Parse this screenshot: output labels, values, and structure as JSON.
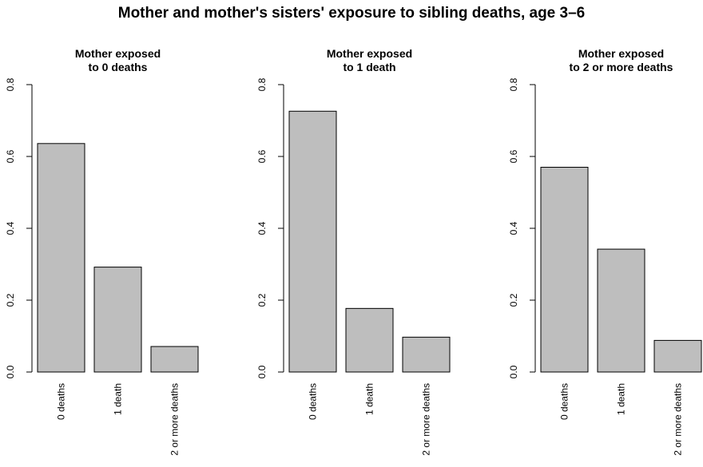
{
  "title": "Mother and mother's sisters' exposure to sibling deaths, age 3–6",
  "chart_data": [
    {
      "type": "bar",
      "title_lines": [
        "Mother exposed",
        "to 0 deaths"
      ],
      "categories": [
        "0 deaths",
        "1 death",
        "2 or more deaths"
      ],
      "values": [
        0.636,
        0.292,
        0.071
      ],
      "ylim": [
        0,
        0.8
      ],
      "yticks": [
        "0.0",
        "0.2",
        "0.4",
        "0.6",
        "0.8"
      ],
      "bar_color": "#bebebe"
    },
    {
      "type": "bar",
      "title_lines": [
        "Mother exposed",
        "to 1 death"
      ],
      "categories": [
        "0 deaths",
        "1 death",
        "2 or more deaths"
      ],
      "values": [
        0.726,
        0.177,
        0.097
      ],
      "ylim": [
        0,
        0.8
      ],
      "yticks": [
        "0.0",
        "0.2",
        "0.4",
        "0.6",
        "0.8"
      ],
      "bar_color": "#bebebe"
    },
    {
      "type": "bar",
      "title_lines": [
        "Mother exposed",
        "to 2 or more deaths"
      ],
      "categories": [
        "0 deaths",
        "1 death",
        "2 or more deaths"
      ],
      "values": [
        0.57,
        0.342,
        0.088
      ],
      "ylim": [
        0,
        0.8
      ],
      "yticks": [
        "0.0",
        "0.2",
        "0.4",
        "0.6",
        "0.8"
      ],
      "bar_color": "#bebebe"
    }
  ]
}
